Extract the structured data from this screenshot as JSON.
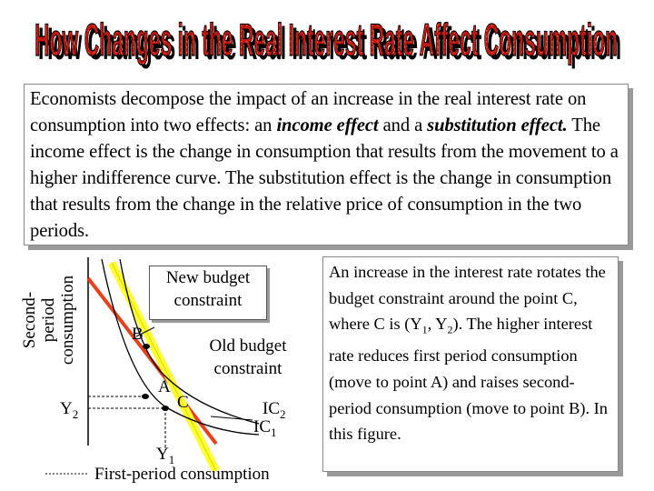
{
  "title": "How Changes in the Real Interest Rate Affect Consumption",
  "intro": {
    "part1": "Economists decompose the impact of an increase in the real interest rate on consumption into two effects: an ",
    "income_effect": "income effect",
    "part2": " and a ",
    "substitution_effect": "substitution effect.",
    "part3": " The income effect is the change in consumption that results from the movement to a higher indifference curve. The substitution effect is the change in consumption that results from the change in the relative price of consumption in the two periods."
  },
  "diagram": {
    "y_axis_label_line1": "Second-",
    "y_axis_label_line2": "period",
    "y_axis_label_line3": "consumption",
    "x_axis_label": "First-period consumption",
    "y2": "Y",
    "y2_sub": "2",
    "y1": "Y",
    "y1_sub": "1",
    "point_a": "A",
    "point_b": "B",
    "point_c": "C",
    "ic2": "IC",
    "ic2_sub": "2",
    "ic1": "IC",
    "ic1_sub": "1",
    "new_budget_line1": "New budget",
    "new_budget_line2": "constraint",
    "old_budget_line1": "Old budget",
    "old_budget_line2": "constraint",
    "colors": {
      "new_budget": "#ffff33",
      "old_budget": "#e8401c",
      "curves": "#000000"
    }
  },
  "note": {
    "part1": "An increase in the interest rate rotates the budget constraint around the point C, where C is (Y",
    "sub1": "1",
    "part2": ", Y",
    "sub2": "2",
    "part3": ").  The higher interest rate reduces first period consumption (move to point A) and raises second-period consumption (move to point B). In this figure."
  }
}
